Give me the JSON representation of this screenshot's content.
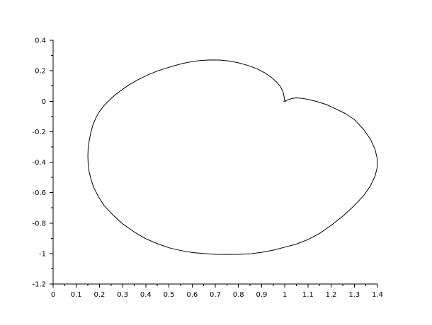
{
  "chart_data": {
    "type": "line",
    "title": "",
    "xlabel": "",
    "ylabel": "",
    "xlim": [
      0,
      1.4
    ],
    "ylim": [
      -1.2,
      0.4
    ],
    "grid": false,
    "x_ticks": [
      0,
      0.1,
      0.2,
      0.3,
      0.4,
      0.5,
      0.6,
      0.7,
      0.8,
      0.9,
      1,
      1.1,
      1.2,
      1.3,
      1.4
    ],
    "x_tick_labels": [
      "0",
      "0.1",
      "0.2",
      "0.3",
      "0.4",
      "0.5",
      "0.6",
      "0.7",
      "0.8",
      "0.9",
      "1",
      "1.1",
      "1.2",
      "1.3",
      "1.4"
    ],
    "y_ticks": [
      -1.2,
      -1,
      -0.8,
      -0.6,
      -0.4,
      -0.2,
      0,
      0.2,
      0.4
    ],
    "y_tick_labels": [
      "-1.2",
      "-1",
      "-0.8",
      "-0.6",
      "-0.4",
      "-0.2",
      "0",
      "0.2",
      "0.4"
    ],
    "series": [
      {
        "color": "#000000",
        "x": [
          1.0,
          0.998,
          0.995,
          0.99,
          0.98,
          0.965,
          0.945,
          0.915,
          0.88,
          0.84,
          0.8,
          0.76,
          0.72,
          0.68,
          0.64,
          0.6,
          0.56,
          0.52,
          0.48,
          0.445,
          0.405,
          0.365,
          0.33,
          0.3,
          0.27,
          0.245,
          0.22,
          0.2,
          0.185,
          0.172,
          0.162,
          0.155,
          0.151,
          0.15,
          0.151,
          0.155,
          0.163,
          0.175,
          0.195,
          0.22,
          0.26,
          0.3,
          0.35,
          0.4,
          0.45,
          0.5,
          0.55,
          0.6,
          0.65,
          0.7,
          0.75,
          0.8,
          0.85,
          0.9,
          0.95,
          1.0,
          1.05,
          1.1,
          1.15,
          1.2,
          1.25,
          1.3,
          1.34,
          1.37,
          1.39,
          1.398,
          1.4,
          1.398,
          1.39,
          1.37,
          1.34,
          1.3,
          1.26,
          1.22,
          1.18,
          1.14,
          1.1,
          1.07,
          1.05,
          1.03,
          1.02,
          1.01,
          1.005,
          1.0
        ],
        "y": [
          0.0,
          0.02,
          0.045,
          0.07,
          0.098,
          0.125,
          0.153,
          0.185,
          0.213,
          0.235,
          0.252,
          0.264,
          0.27,
          0.271,
          0.268,
          0.26,
          0.248,
          0.232,
          0.213,
          0.195,
          0.17,
          0.14,
          0.11,
          0.078,
          0.045,
          0.01,
          -0.028,
          -0.068,
          -0.108,
          -0.155,
          -0.21,
          -0.265,
          -0.315,
          -0.36,
          -0.405,
          -0.46,
          -0.51,
          -0.565,
          -0.625,
          -0.685,
          -0.75,
          -0.805,
          -0.858,
          -0.903,
          -0.935,
          -0.962,
          -0.98,
          -0.993,
          -1.0,
          -1.005,
          -1.006,
          -1.005,
          -1.002,
          -0.992,
          -0.978,
          -0.958,
          -0.938,
          -0.908,
          -0.868,
          -0.815,
          -0.755,
          -0.685,
          -0.62,
          -0.555,
          -0.49,
          -0.44,
          -0.41,
          -0.37,
          -0.318,
          -0.25,
          -0.185,
          -0.12,
          -0.08,
          -0.05,
          -0.022,
          -0.003,
          0.012,
          0.02,
          0.022,
          0.018,
          0.012,
          0.007,
          0.003,
          0.0
        ]
      }
    ]
  }
}
